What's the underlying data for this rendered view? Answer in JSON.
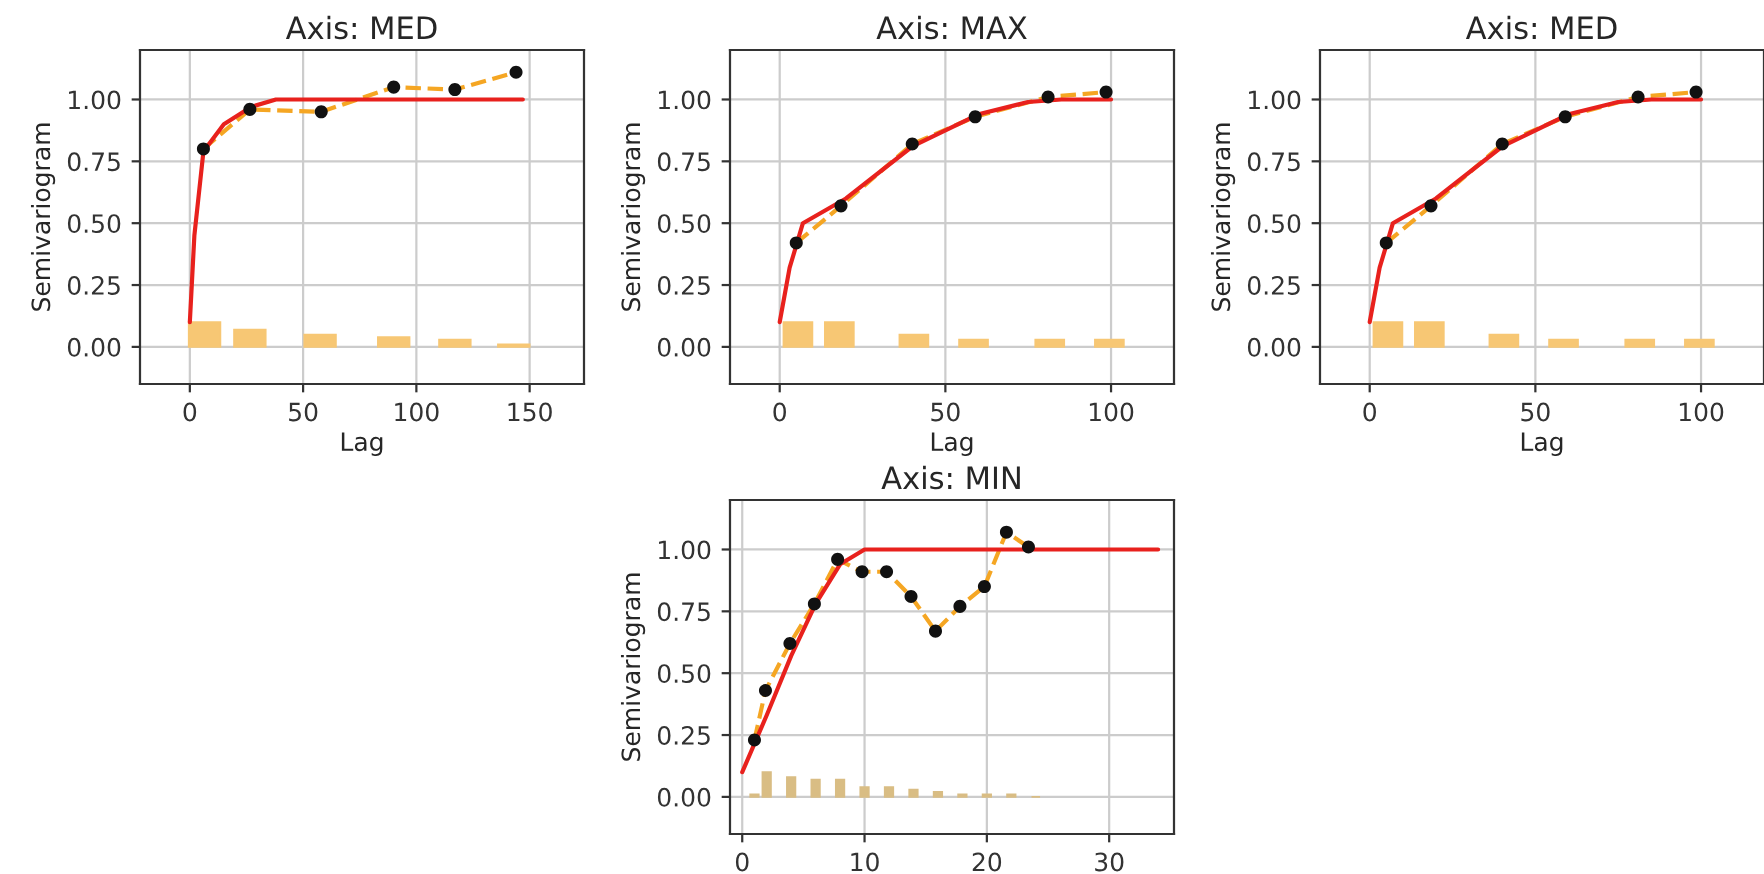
{
  "chart_data": [
    {
      "type": "line",
      "title": "Axis: MED",
      "xlabel": "Lag",
      "ylabel": "Semivariogram",
      "xlim": [
        -22,
        174
      ],
      "ylim": [
        -0.15,
        1.2
      ],
      "xticks": [
        0,
        50,
        100,
        150
      ],
      "yticks": [
        {
          "value": 0,
          "label": "0.00"
        },
        {
          "value": 0.25,
          "label": "0.25"
        },
        {
          "value": 0.5,
          "label": "0.50"
        },
        {
          "value": 0.75,
          "label": "0.75"
        },
        {
          "value": 1,
          "label": "1.00"
        }
      ],
      "grid": true,
      "series": [
        {
          "type": "bar",
          "color": "#f7c774",
          "x": [
            6.5,
            26.5,
            57.5,
            90,
            117,
            143
          ],
          "values": [
            0.1,
            0.07,
            0.05,
            0.04,
            0.03,
            0.01
          ]
        },
        {
          "line_style": "dashed",
          "marker": "none",
          "color": "#f5a623",
          "x": [
            6,
            26.5,
            58,
            90,
            117,
            144
          ],
          "values": [
            0.8,
            0.96,
            0.95,
            1.05,
            1.04,
            1.11
          ]
        },
        {
          "type": "scatter",
          "marker": "circle",
          "color": "#111111",
          "x": [
            6,
            26.5,
            58,
            90,
            117,
            144
          ],
          "values": [
            0.8,
            0.96,
            0.95,
            1.05,
            1.04,
            1.11
          ]
        },
        {
          "line_style": "solid",
          "marker": "none",
          "color": "#e8211d",
          "x": [
            0,
            2,
            6,
            15,
            27,
            38,
            147
          ],
          "values": [
            0.1,
            0.45,
            0.79,
            0.9,
            0.97,
            1.0,
            1.0
          ]
        }
      ]
    },
    {
      "type": "line",
      "title": "Axis: MAX",
      "xlabel": "Lag",
      "ylabel": "Semivariogram",
      "xlim": [
        -15,
        119
      ],
      "ylim": [
        -0.15,
        1.2
      ],
      "xticks": [
        0,
        50,
        100
      ],
      "yticks": [
        {
          "value": 0,
          "label": "0.00"
        },
        {
          "value": 0.25,
          "label": "0.25"
        },
        {
          "value": 0.5,
          "label": "0.50"
        },
        {
          "value": 0.75,
          "label": "0.75"
        },
        {
          "value": 1,
          "label": "1.00"
        }
      ],
      "grid": true,
      "series": [
        {
          "type": "bar",
          "color": "#f7c774",
          "x": [
            5.5,
            18,
            40.5,
            58.5,
            81.5,
            99.5
          ],
          "values": [
            0.1,
            0.1,
            0.05,
            0.03,
            0.03,
            0.03
          ]
        },
        {
          "line_style": "dashed",
          "marker": "none",
          "color": "#f5a623",
          "x": [
            5,
            18.5,
            40,
            59,
            81,
            98.5
          ],
          "values": [
            0.42,
            0.57,
            0.82,
            0.93,
            1.01,
            1.03
          ]
        },
        {
          "type": "scatter",
          "marker": "circle",
          "color": "#111111",
          "x": [
            5,
            18.5,
            40,
            59,
            81,
            98.5
          ],
          "values": [
            0.42,
            0.57,
            0.82,
            0.93,
            1.01,
            1.03
          ]
        },
        {
          "line_style": "solid",
          "marker": "none",
          "color": "#e8211d",
          "x": [
            0,
            3,
            7,
            20,
            40,
            60,
            75,
            85,
            100
          ],
          "values": [
            0.1,
            0.32,
            0.5,
            0.6,
            0.81,
            0.94,
            0.99,
            1.0,
            1.0
          ]
        }
      ]
    },
    {
      "type": "line",
      "title": "Axis: MED",
      "xlabel": "Lag",
      "ylabel": "Semivariogram",
      "xlim": [
        -15,
        119
      ],
      "ylim": [
        -0.15,
        1.2
      ],
      "xticks": [
        0,
        50,
        100
      ],
      "yticks": [
        {
          "value": 0,
          "label": "0.00"
        },
        {
          "value": 0.25,
          "label": "0.25"
        },
        {
          "value": 0.5,
          "label": "0.50"
        },
        {
          "value": 0.75,
          "label": "0.75"
        },
        {
          "value": 1,
          "label": "1.00"
        }
      ],
      "grid": true,
      "series": [
        {
          "type": "bar",
          "color": "#f7c774",
          "x": [
            5.5,
            18,
            40.5,
            58.5,
            81.5,
            99.5
          ],
          "values": [
            0.1,
            0.1,
            0.05,
            0.03,
            0.03,
            0.03
          ]
        },
        {
          "line_style": "dashed",
          "marker": "none",
          "color": "#f5a623",
          "x": [
            5,
            18.5,
            40,
            59,
            81,
            98.5
          ],
          "values": [
            0.42,
            0.57,
            0.82,
            0.93,
            1.01,
            1.03
          ]
        },
        {
          "type": "scatter",
          "marker": "circle",
          "color": "#111111",
          "x": [
            5,
            18.5,
            40,
            59,
            81,
            98.5
          ],
          "values": [
            0.42,
            0.57,
            0.82,
            0.93,
            1.01,
            1.03
          ]
        },
        {
          "line_style": "solid",
          "marker": "none",
          "color": "#e8211d",
          "x": [
            0,
            3,
            7,
            20,
            40,
            60,
            75,
            85,
            100
          ],
          "values": [
            0.1,
            0.32,
            0.5,
            0.6,
            0.81,
            0.94,
            0.99,
            1.0,
            1.0
          ]
        }
      ]
    },
    {
      "type": "line",
      "title": "Axis: MIN",
      "ylabel": "Semivariogram",
      "xlim": [
        -1,
        35.3
      ],
      "ylim": [
        -0.15,
        1.2
      ],
      "xticks": [
        0,
        10,
        20,
        30
      ],
      "yticks": [
        {
          "value": 0,
          "label": "0.00"
        },
        {
          "value": 0.25,
          "label": "0.25"
        },
        {
          "value": 0.5,
          "label": "0.50"
        },
        {
          "value": 0.75,
          "label": "0.75"
        },
        {
          "value": 1,
          "label": "1.00"
        }
      ],
      "grid": true,
      "series": [
        {
          "type": "bar",
          "color": "#d9bd84",
          "x": [
            1,
            2,
            4,
            6,
            8,
            10,
            12,
            14,
            16,
            18,
            20,
            22,
            24
          ],
          "values": [
            0.01,
            0.1,
            0.08,
            0.07,
            0.07,
            0.04,
            0.04,
            0.03,
            0.02,
            0.01,
            0.01,
            0.01,
            0.0
          ]
        },
        {
          "line_style": "dashed",
          "marker": "none",
          "color": "#f5a623",
          "x": [
            1,
            1.9,
            3.9,
            5.9,
            7.8,
            9.8,
            11.8,
            13.8,
            15.8,
            17.8,
            19.8,
            21.6,
            23.4
          ],
          "values": [
            0.23,
            0.43,
            0.62,
            0.78,
            0.96,
            0.91,
            0.91,
            0.81,
            0.67,
            0.77,
            0.85,
            1.07,
            1.01
          ]
        },
        {
          "type": "scatter",
          "marker": "circle",
          "color": "#111111",
          "x": [
            1,
            1.9,
            3.9,
            5.9,
            7.8,
            9.8,
            11.8,
            13.8,
            15.8,
            17.8,
            19.8,
            21.6,
            23.4
          ],
          "values": [
            0.23,
            0.43,
            0.62,
            0.78,
            0.96,
            0.91,
            0.91,
            0.81,
            0.67,
            0.77,
            0.85,
            1.07,
            1.01
          ]
        },
        {
          "line_style": "solid",
          "marker": "none",
          "color": "#e8211d",
          "x": [
            0,
            2,
            4,
            6,
            8,
            10,
            34
          ],
          "values": [
            0.1,
            0.33,
            0.57,
            0.78,
            0.94,
            1.0,
            1.0
          ]
        }
      ]
    }
  ]
}
